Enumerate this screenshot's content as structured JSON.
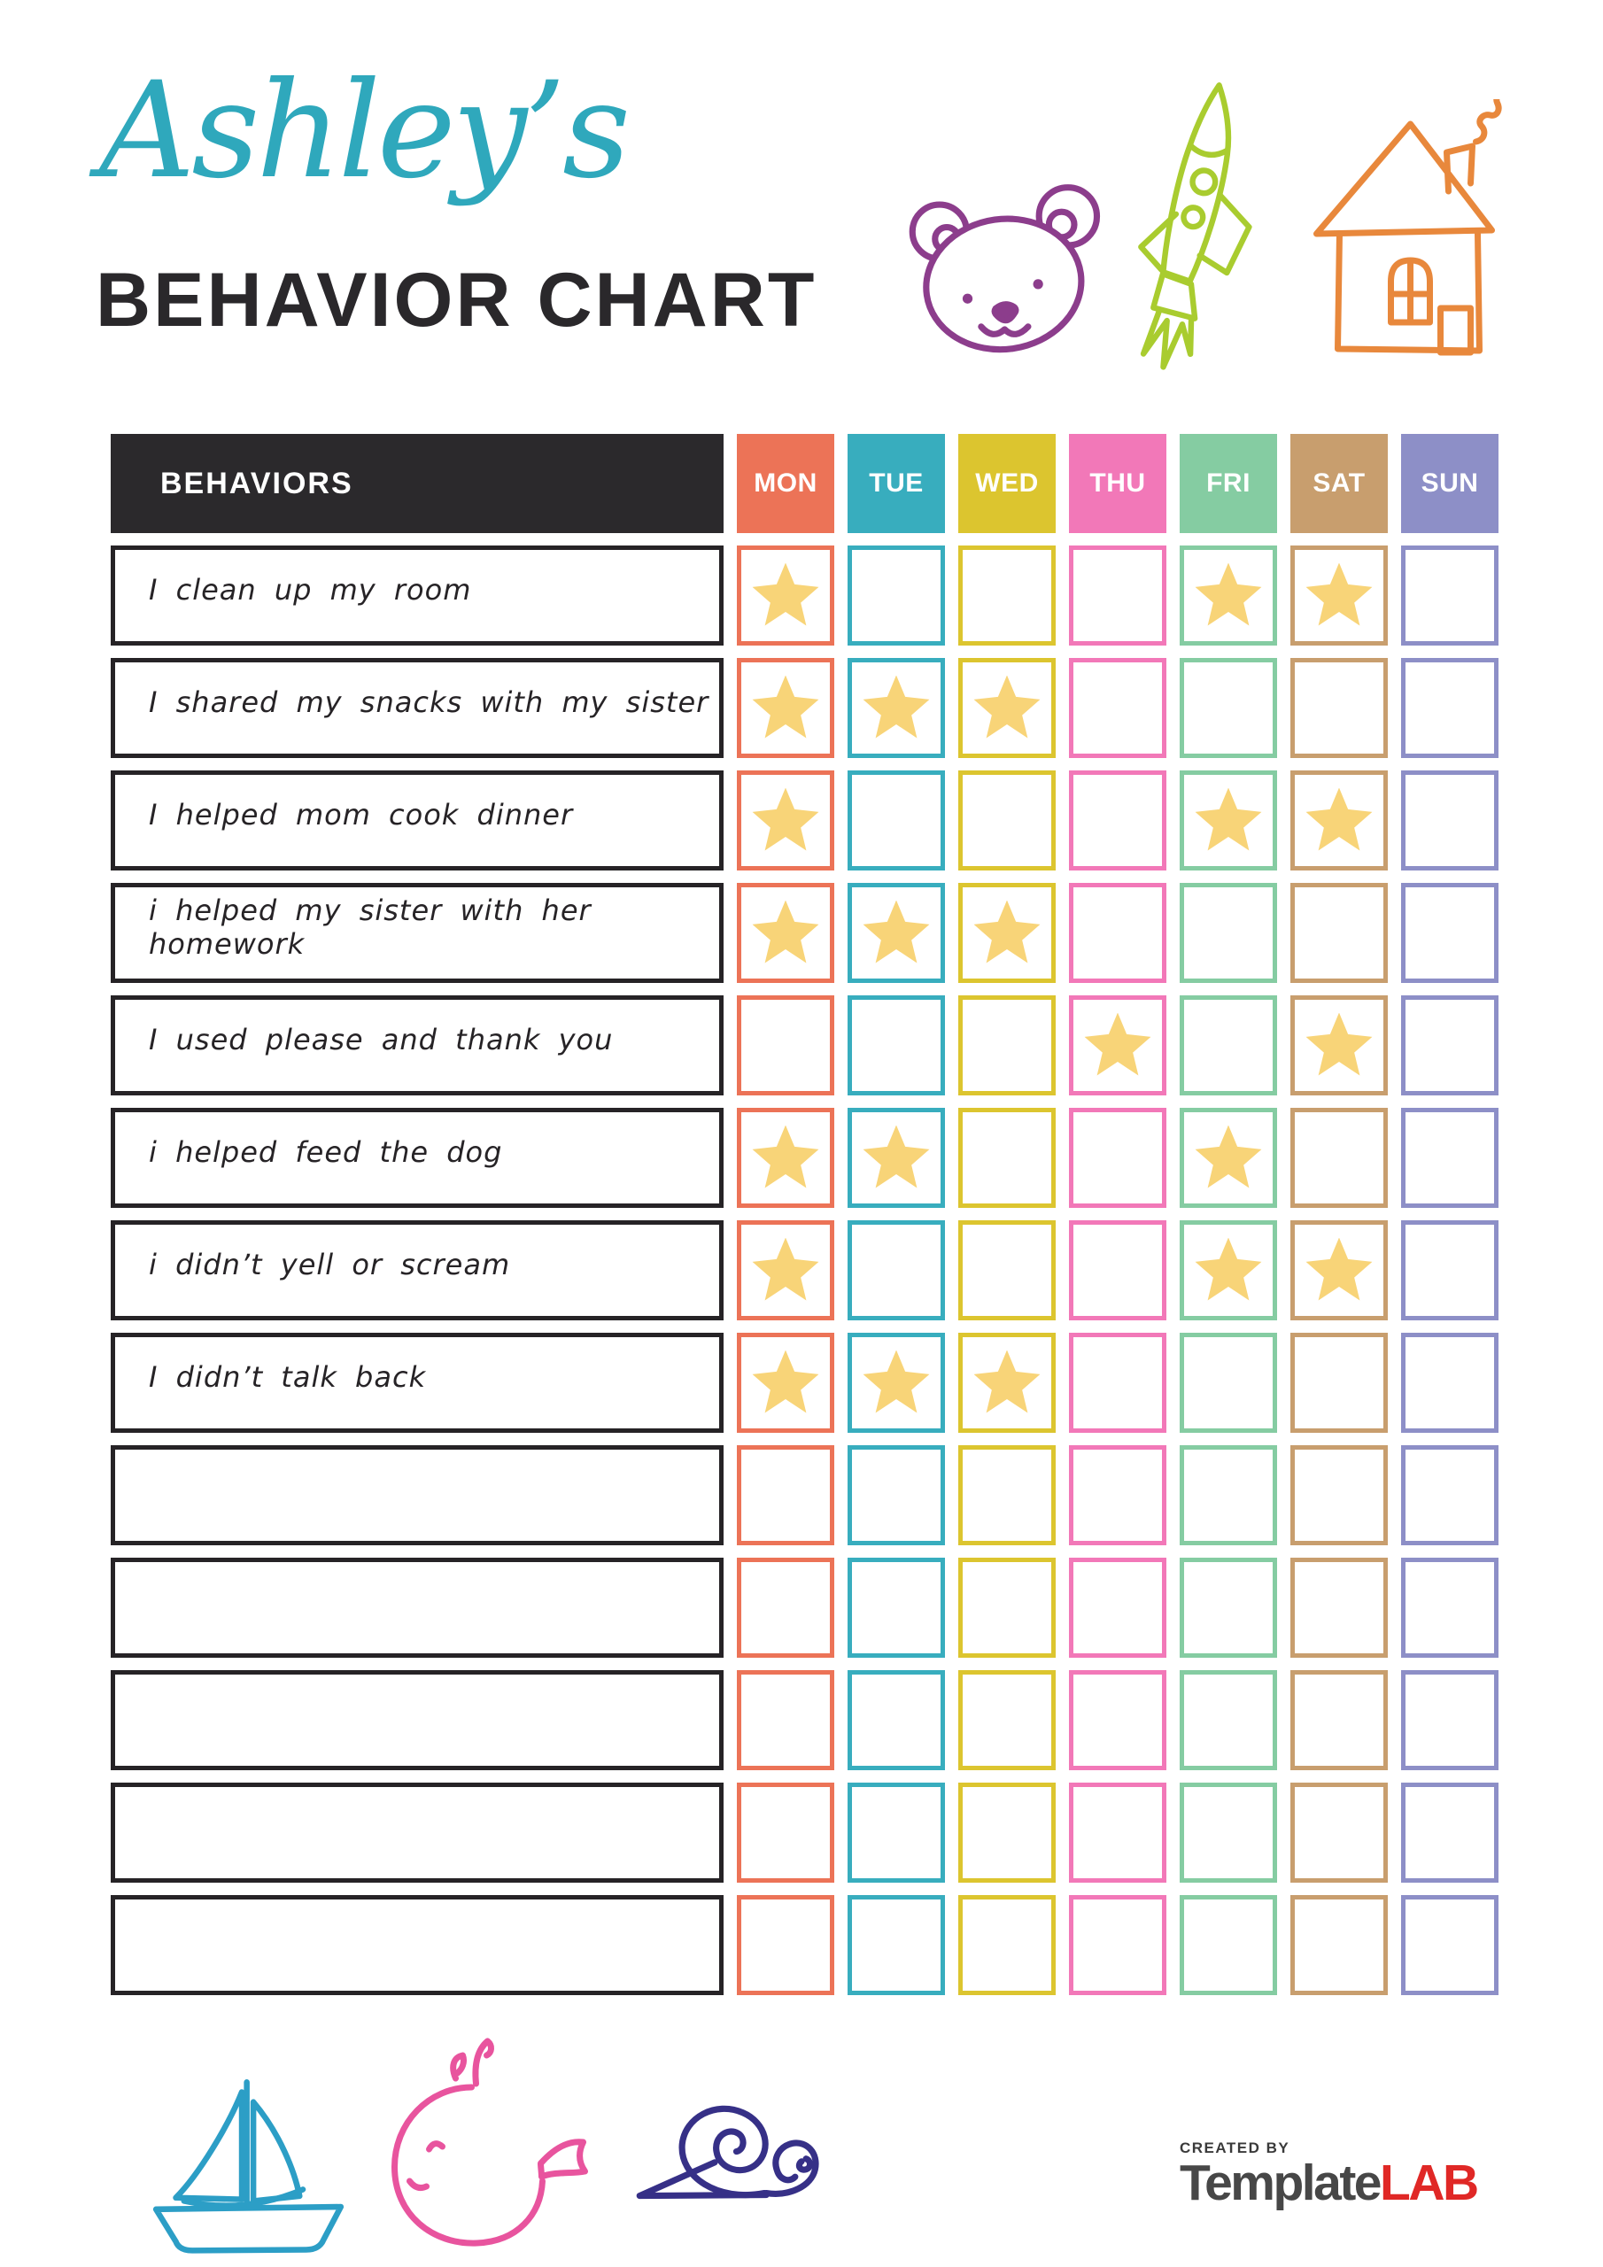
{
  "header": {
    "name_script": "Ashley’s",
    "title": "BEHAVIOR CHART"
  },
  "colors": {
    "title_teal": "#2FA8BC",
    "title_dark": "#2A282B",
    "table_header_bg": "#2B292C",
    "row_border": "#262326",
    "star": "#F8D478",
    "bear": "#8C3D8C",
    "rocket": "#A9CC2F",
    "house": "#E8883C",
    "sailboat": "#2C9EC6",
    "whale": "#E8549E",
    "snail": "#363087",
    "logo_gray": "#474747",
    "logo_red": "#E02826"
  },
  "table": {
    "behaviors_header": "BEHAVIORS",
    "days": [
      {
        "label": "MON",
        "color": "#EC7357"
      },
      {
        "label": "TUE",
        "color": "#38ADBE"
      },
      {
        "label": "WED",
        "color": "#DCC52F"
      },
      {
        "label": "THU",
        "color": "#F278B8"
      },
      {
        "label": "FRI",
        "color": "#85CCA2"
      },
      {
        "label": "SAT",
        "color": "#C89E6E"
      },
      {
        "label": "SUN",
        "color": "#8D8FC7"
      }
    ],
    "rows": [
      {
        "label": "I clean up my room",
        "stars": [
          1,
          0,
          0,
          0,
          1,
          1,
          0
        ]
      },
      {
        "label": "I shared my snacks with my sister",
        "stars": [
          1,
          1,
          1,
          0,
          0,
          0,
          0
        ]
      },
      {
        "label": "I helped mom cook dinner",
        "stars": [
          1,
          0,
          0,
          0,
          1,
          1,
          0
        ]
      },
      {
        "label": "i helped my sister with her homework",
        "stars": [
          1,
          1,
          1,
          0,
          0,
          0,
          0
        ]
      },
      {
        "label": "I used please and thank you",
        "stars": [
          0,
          0,
          0,
          1,
          0,
          1,
          0
        ]
      },
      {
        "label": "i helped feed the dog",
        "stars": [
          1,
          1,
          0,
          0,
          1,
          0,
          0
        ]
      },
      {
        "label": "i didn’t yell or scream",
        "stars": [
          1,
          0,
          0,
          0,
          1,
          1,
          0
        ]
      },
      {
        "label": "I didn’t talk back",
        "stars": [
          1,
          1,
          1,
          0,
          0,
          0,
          0
        ]
      },
      {
        "label": "",
        "stars": [
          0,
          0,
          0,
          0,
          0,
          0,
          0
        ]
      },
      {
        "label": "",
        "stars": [
          0,
          0,
          0,
          0,
          0,
          0,
          0
        ]
      },
      {
        "label": "",
        "stars": [
          0,
          0,
          0,
          0,
          0,
          0,
          0
        ]
      },
      {
        "label": "",
        "stars": [
          0,
          0,
          0,
          0,
          0,
          0,
          0
        ]
      },
      {
        "label": "",
        "stars": [
          0,
          0,
          0,
          0,
          0,
          0,
          0
        ]
      }
    ]
  },
  "footer": {
    "created_by": "CREATED BY",
    "brand_template": "Template",
    "brand_lab": "LAB"
  }
}
